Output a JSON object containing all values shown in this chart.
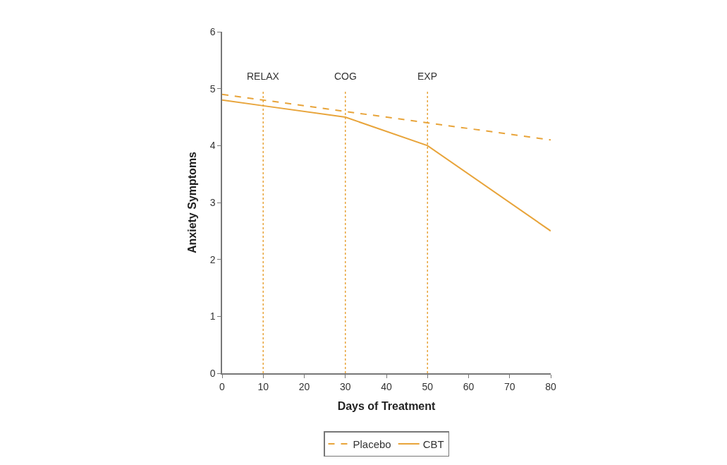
{
  "chart_data": {
    "type": "line",
    "xlabel": "Days of Treatment",
    "ylabel": "Anxiety Symptoms",
    "xlim": [
      0,
      80
    ],
    "xticks": [
      0,
      10,
      20,
      30,
      40,
      50,
      60,
      70,
      80
    ],
    "ylim": [
      0,
      6
    ],
    "yticks": [
      0,
      1,
      2,
      3,
      4,
      5,
      6
    ],
    "grid": false,
    "legend": "bottom",
    "marker": "none",
    "series": [
      {
        "name": "Placebo",
        "color": "#e8a43a",
        "line_style": "dashed",
        "x": [
          0,
          80
        ],
        "values": [
          4.9,
          4.1
        ]
      },
      {
        "name": "CBT",
        "color": "#e8a43a",
        "line_style": "solid",
        "x": [
          0,
          10,
          30,
          50,
          80
        ],
        "values": [
          4.8,
          4.7,
          4.5,
          4.0,
          2.5
        ]
      }
    ],
    "ref_lines": [
      {
        "axis": "x",
        "value": 10,
        "label": "RELAX",
        "color": "#e8a43a",
        "line_style": "dotted"
      },
      {
        "axis": "x",
        "value": 30,
        "label": "COG",
        "color": "#e8a43a",
        "line_style": "dotted"
      },
      {
        "axis": "x",
        "value": 50,
        "label": "EXP",
        "color": "#e8a43a",
        "line_style": "dotted"
      }
    ]
  }
}
